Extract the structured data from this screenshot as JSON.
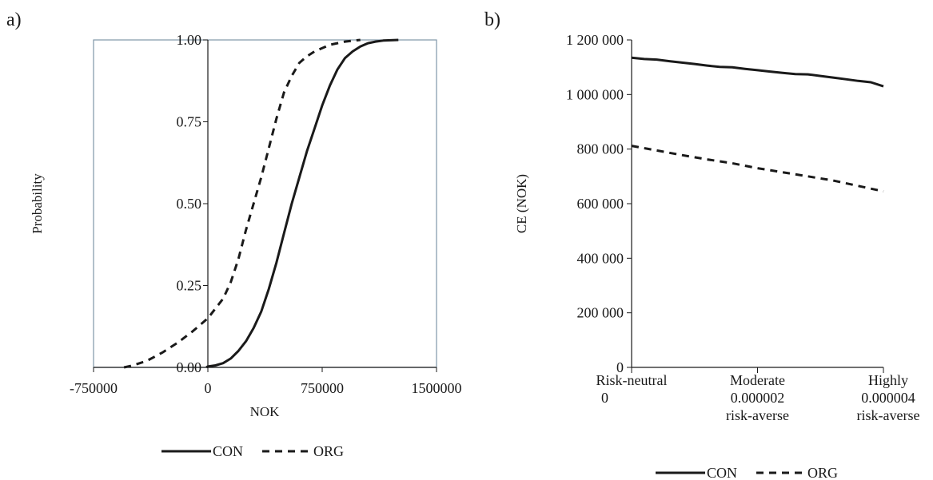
{
  "chart_data": [
    {
      "panel_label": "a)",
      "type": "line",
      "xlabel": "NOK",
      "ylabel": "Probability",
      "xlim": [
        -750000,
        1500000
      ],
      "ylim": [
        0,
        1
      ],
      "x_ticks": [
        "-750000",
        "0",
        "750000",
        "1500000"
      ],
      "y_ticks": [
        "0.00",
        "0.25",
        "0.50",
        "0.75",
        "1.00"
      ],
      "legend_position": "bottom",
      "series": [
        {
          "name": "CON",
          "style": "solid",
          "points": [
            [
              -10000,
              0.0
            ],
            [
              0,
              0.003
            ],
            [
              50000,
              0.006
            ],
            [
              100000,
              0.013
            ],
            [
              150000,
              0.027
            ],
            [
              200000,
              0.05
            ],
            [
              250000,
              0.08
            ],
            [
              300000,
              0.12
            ],
            [
              350000,
              0.17
            ],
            [
              400000,
              0.24
            ],
            [
              450000,
              0.32
            ],
            [
              500000,
              0.41
            ],
            [
              550000,
              0.5
            ],
            [
              600000,
              0.58
            ],
            [
              650000,
              0.66
            ],
            [
              700000,
              0.73
            ],
            [
              750000,
              0.8
            ],
            [
              800000,
              0.86
            ],
            [
              850000,
              0.91
            ],
            [
              900000,
              0.945
            ],
            [
              950000,
              0.965
            ],
            [
              1000000,
              0.98
            ],
            [
              1050000,
              0.99
            ],
            [
              1100000,
              0.995
            ],
            [
              1150000,
              0.998
            ],
            [
              1250000,
              1.0
            ]
          ]
        },
        {
          "name": "ORG",
          "style": "dashed",
          "points": [
            [
              -550000,
              0.0
            ],
            [
              -500000,
              0.005
            ],
            [
              -400000,
              0.02
            ],
            [
              -300000,
              0.045
            ],
            [
              -200000,
              0.075
            ],
            [
              -100000,
              0.11
            ],
            [
              0,
              0.15
            ],
            [
              100000,
              0.21
            ],
            [
              150000,
              0.26
            ],
            [
              200000,
              0.33
            ],
            [
              250000,
              0.42
            ],
            [
              300000,
              0.5
            ],
            [
              350000,
              0.58
            ],
            [
              400000,
              0.67
            ],
            [
              450000,
              0.76
            ],
            [
              500000,
              0.84
            ],
            [
              550000,
              0.89
            ],
            [
              600000,
              0.93
            ],
            [
              650000,
              0.95
            ],
            [
              700000,
              0.965
            ],
            [
              750000,
              0.975
            ],
            [
              800000,
              0.985
            ],
            [
              900000,
              0.995
            ],
            [
              1000000,
              1.0
            ]
          ]
        }
      ]
    },
    {
      "panel_label": "b)",
      "type": "line",
      "xlabel": "",
      "ylabel": "CE (NOK)",
      "ylim": [
        0,
        1200000
      ],
      "xlim": [
        0,
        4e-06
      ],
      "y_ticks": [
        "0",
        "200 000",
        "400 000",
        "600 000",
        "800 000",
        "1 000 000",
        "1 200 000"
      ],
      "x_ticks": [
        {
          "value": 0,
          "lines": [
            "Risk-neutral",
            "0"
          ]
        },
        {
          "value": 2e-06,
          "lines": [
            "Moderate",
            "0.000002",
            "risk-averse"
          ]
        },
        {
          "value": 4e-06,
          "lines": [
            "Highly",
            "0.000004",
            "risk-averse"
          ]
        }
      ],
      "legend_position": "bottom",
      "series": [
        {
          "name": "CON",
          "style": "solid",
          "points": [
            [
              0,
              1135000
            ],
            [
              2e-07,
              1130000
            ],
            [
              4e-07,
              1128000
            ],
            [
              6e-07,
              1122000
            ],
            [
              8e-07,
              1117000
            ],
            [
              1e-06,
              1112000
            ],
            [
              1.2e-06,
              1106000
            ],
            [
              1.4e-06,
              1101000
            ],
            [
              1.6e-06,
              1100000
            ],
            [
              1.8e-06,
              1094000
            ],
            [
              2e-06,
              1089000
            ],
            [
              2.2e-06,
              1084000
            ],
            [
              2.4e-06,
              1079000
            ],
            [
              2.6e-06,
              1075000
            ],
            [
              2.8e-06,
              1074000
            ],
            [
              3e-06,
              1068000
            ],
            [
              3.2e-06,
              1062000
            ],
            [
              3.4e-06,
              1056000
            ],
            [
              3.6e-06,
              1050000
            ],
            [
              3.8e-06,
              1045000
            ],
            [
              4e-06,
              1030000
            ]
          ]
        },
        {
          "name": "ORG",
          "style": "dashed",
          "points": [
            [
              0,
              812000
            ],
            [
              4e-07,
              795000
            ],
            [
              8e-07,
              778000
            ],
            [
              1.2e-06,
              762000
            ],
            [
              1.6e-06,
              748000
            ],
            [
              2e-06,
              730000
            ],
            [
              2.4e-06,
              715000
            ],
            [
              2.8e-06,
              700000
            ],
            [
              3.2e-06,
              685000
            ],
            [
              3.6e-06,
              665000
            ],
            [
              4e-06,
              645000
            ]
          ]
        }
      ]
    }
  ]
}
